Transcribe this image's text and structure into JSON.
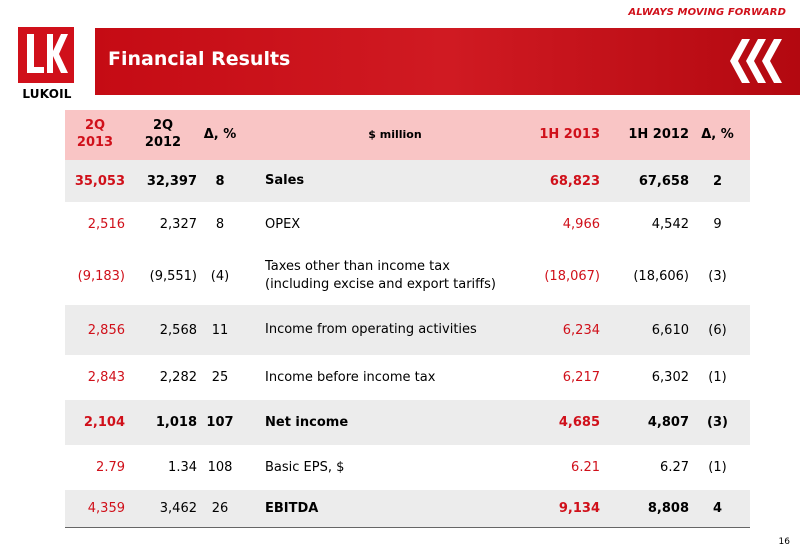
{
  "tagline": "ALWAYS MOVING FORWARD",
  "logo": {
    "text": "LUKOIL"
  },
  "title": "Financial Results",
  "table": {
    "header": {
      "c1": "2Q\n2013",
      "c2": "2Q\n2012",
      "c3": "Δ, %",
      "c4": "$ million",
      "c5": "1H 2013",
      "c6": "1H 2012",
      "c7": "Δ, %"
    },
    "rows": [
      {
        "c1": "35,053",
        "c2": "32,397",
        "c3": "8",
        "c4": "Sales",
        "c5": "68,823",
        "c6": "67,658",
        "c7": "2"
      },
      {
        "c1": "2,516",
        "c2": "2,327",
        "c3": "8",
        "c4": "OPEX",
        "c5": "4,966",
        "c6": "4,542",
        "c7": "9"
      },
      {
        "c1": "(9,183)",
        "c2": "(9,551)",
        "c3": "(4)",
        "c4": "Taxes other than income tax\n(including excise and export tariffs)",
        "c5": "(18,067)",
        "c6": "(18,606)",
        "c7": "(3)"
      },
      {
        "c1": "2,856",
        "c2": "2,568",
        "c3": "11",
        "c4": "Income from operating activities",
        "c5": "6,234",
        "c6": "6,610",
        "c7": "(6)"
      },
      {
        "c1": "2,843",
        "c2": "2,282",
        "c3": "25",
        "c4": "Income before income tax",
        "c5": "6,217",
        "c6": "6,302",
        "c7": "(1)"
      },
      {
        "c1": "2,104",
        "c2": "1,018",
        "c3": "107",
        "c4": "Net income",
        "c5": "4,685",
        "c6": "4,807",
        "c7": "(3)"
      },
      {
        "c1": "2.79",
        "c2": "1.34",
        "c3": "108",
        "c4": "Basic EPS, $",
        "c5": "6.21",
        "c6": "6.27",
        "c7": "(1)"
      },
      {
        "c1": "4,359",
        "c2": "3,462",
        "c3": "26",
        "c4": "EBITDA",
        "c5": "9,134",
        "c6": "8,808",
        "c7": "4"
      }
    ]
  },
  "page_number": "16",
  "colors": {
    "brand_red": "#d0101a",
    "header_pink": "#f9c5c5",
    "row_shade": "#ececec"
  }
}
